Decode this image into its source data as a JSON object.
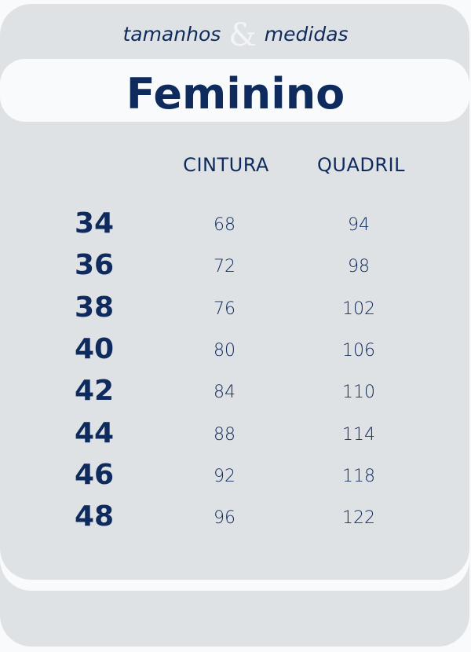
{
  "header": {
    "subtitle_left": "tamanhos",
    "subtitle_amp": "&",
    "subtitle_right": "medidas",
    "title": "Feminino"
  },
  "table": {
    "columns": [
      "CINTURA",
      "QUADRIL"
    ],
    "rows": [
      {
        "size": "34",
        "cintura": "68",
        "quadril": "94"
      },
      {
        "size": "36",
        "cintura": "72",
        "quadril": "98"
      },
      {
        "size": "38",
        "cintura": "76",
        "quadril": "102"
      },
      {
        "size": "40",
        "cintura": "80",
        "quadril": "106"
      },
      {
        "size": "42",
        "cintura": "84",
        "quadril": "110"
      },
      {
        "size": "44",
        "cintura": "88",
        "quadril": "114"
      },
      {
        "size": "46",
        "cintura": "92",
        "quadril": "118"
      },
      {
        "size": "48",
        "cintura": "96",
        "quadril": "122"
      }
    ]
  },
  "colors": {
    "text": "#0f2a5c",
    "card": "#dfe2e5",
    "band": "#f8fafc"
  }
}
